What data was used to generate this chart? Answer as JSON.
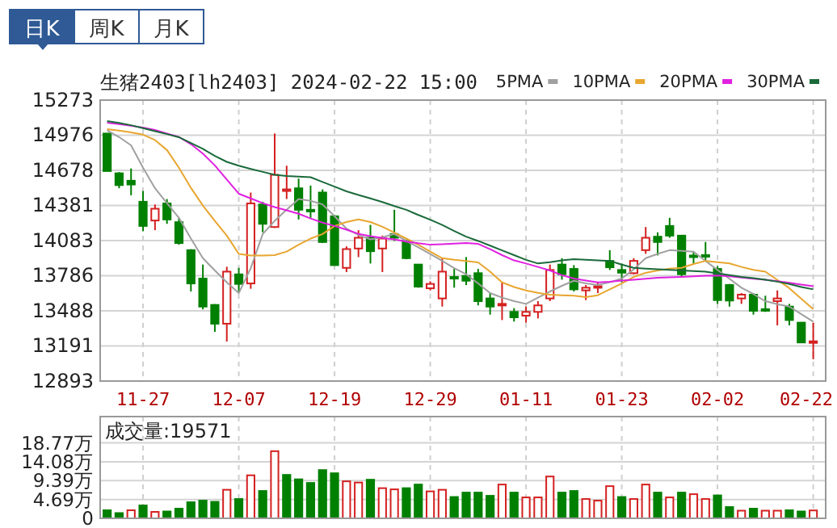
{
  "chart_data": [
    {
      "type": "candlestick",
      "title": "生猪2403[lh2403] 2024-02-22 15:00",
      "annotations": [
        "日K",
        "周K",
        "月K"
      ],
      "categories": [
        null,
        null,
        null,
        "11-27",
        null,
        null,
        null,
        null,
        null,
        null,
        null,
        "12-07",
        null,
        null,
        null,
        null,
        null,
        null,
        null,
        "12-19",
        null,
        null,
        null,
        null,
        null,
        null,
        null,
        "12-29",
        null,
        null,
        null,
        null,
        null,
        null,
        null,
        "01-11",
        null,
        null,
        null,
        null,
        null,
        null,
        null,
        "01-23",
        null,
        null,
        null,
        null,
        null,
        null,
        null,
        "02-02",
        null,
        null,
        null,
        null,
        null,
        null,
        null,
        "02-22"
      ],
      "ohlc": [
        [
          14990,
          14990,
          14672,
          14672
        ],
        [
          14653,
          14663,
          14526,
          14553
        ],
        [
          14590,
          14694,
          14467,
          14558
        ],
        [
          14412,
          14503,
          14162,
          14207
        ],
        [
          14253,
          14389,
          14171,
          14353
        ],
        [
          14398,
          14435,
          14225,
          14262
        ],
        [
          14239,
          14276,
          14048,
          14062
        ],
        [
          14002,
          14010,
          13652,
          13720
        ],
        [
          13761,
          13880,
          13500,
          13524
        ],
        [
          13538,
          13545,
          13310,
          13379
        ],
        [
          13379,
          13861,
          13228,
          13820
        ],
        [
          13797,
          13852,
          13652,
          13716
        ],
        [
          13720,
          14490,
          13675,
          14398
        ],
        [
          14389,
          14412,
          14153,
          14225
        ],
        [
          14198,
          14990,
          14190,
          14640
        ],
        [
          14503,
          14717,
          14435,
          14517
        ],
        [
          14526,
          14608,
          14262,
          14344
        ],
        [
          14344,
          14549,
          14276,
          14330
        ],
        [
          14490,
          14517,
          14062,
          14071
        ],
        [
          14289,
          14300,
          13870,
          13875
        ],
        [
          13852,
          14034,
          13816,
          14011
        ],
        [
          14016,
          14171,
          13943,
          14107
        ],
        [
          14107,
          14216,
          13889,
          13993
        ],
        [
          14016,
          14125,
          13816,
          14100
        ],
        [
          14139,
          14344,
          14080,
          14107
        ],
        [
          14080,
          14093,
          13925,
          13934
        ],
        [
          13880,
          13885,
          13684,
          13693
        ],
        [
          13679,
          13738,
          13661,
          13716
        ],
        [
          13593,
          13934,
          13524,
          13820
        ],
        [
          13775,
          13843,
          13684,
          13761
        ],
        [
          13784,
          13943,
          13706,
          13743
        ],
        [
          13807,
          13843,
          13534,
          13570
        ],
        [
          13593,
          13638,
          13456,
          13524
        ],
        [
          13534,
          13729,
          13410,
          13547
        ],
        [
          13479,
          13511,
          13397,
          13433
        ],
        [
          13447,
          13524,
          13388,
          13479
        ],
        [
          13479,
          13570,
          13424,
          13534
        ],
        [
          13593,
          13880,
          13570,
          13834
        ],
        [
          13880,
          13934,
          13752,
          13798
        ],
        [
          13843,
          13875,
          13652,
          13670
        ],
        [
          13661,
          13707,
          13579,
          13684
        ],
        [
          13684,
          13729,
          13638,
          13697
        ],
        [
          13911,
          14002,
          13834,
          13857
        ],
        [
          13834,
          13889,
          13729,
          13811
        ],
        [
          13807,
          13934,
          13798,
          13911
        ],
        [
          14002,
          14198,
          13971,
          14107
        ],
        [
          14116,
          14153,
          13957,
          14071
        ],
        [
          14207,
          14276,
          14107,
          14125
        ],
        [
          14125,
          14125,
          13775,
          13798
        ],
        [
          13957,
          13989,
          13889,
          13943
        ],
        [
          13960,
          14071,
          13911,
          13950
        ],
        [
          13843,
          13866,
          13547,
          13579
        ],
        [
          13707,
          13716,
          13524,
          13575
        ],
        [
          13593,
          13638,
          13547,
          13625
        ],
        [
          13625,
          13638,
          13456,
          13488
        ],
        [
          13502,
          13616,
          13479,
          13493
        ],
        [
          13570,
          13661,
          13365,
          13593
        ],
        [
          13524,
          13547,
          13365,
          13410
        ],
        [
          13388,
          13388,
          13215,
          13220
        ],
        [
          13218,
          13388,
          13078,
          13230
        ]
      ],
      "colors": [
        "#008000",
        "#008000",
        "#008000",
        "#008000",
        "#d42020",
        "#008000",
        "#008000",
        "#008000",
        "#008000",
        "#008000",
        "#d42020",
        "#008000",
        "#d42020",
        "#008000",
        "#d42020",
        "#d42020",
        "#008000",
        "#008000",
        "#008000",
        "#008000",
        "#d42020",
        "#d42020",
        "#008000",
        "#d42020",
        "#008000",
        "#008000",
        "#008000",
        "#d42020",
        "#d42020",
        "#008000",
        "#008000",
        "#008000",
        "#008000",
        "#d42020",
        "#008000",
        "#d42020",
        "#d42020",
        "#d42020",
        "#008000",
        "#008000",
        "#d42020",
        "#d42020",
        "#008000",
        "#008000",
        "#d42020",
        "#d42020",
        "#008000",
        "#008000",
        "#008000",
        "#008000",
        "#008000",
        "#008000",
        "#008000",
        "#d42020",
        "#008000",
        "#008000",
        "#d42020",
        "#008000",
        "#008000",
        "#d42020"
      ],
      "series": [
        {
          "name": "5PMA",
          "type": "line",
          "color": "#a0a0a0",
          "values": [
            15018,
            14960,
            14890,
            14700,
            14526,
            14400,
            14276,
            14100,
            13934,
            13830,
            13729,
            13638,
            13850,
            14139,
            14250,
            14344,
            14435,
            14420,
            14390,
            14290,
            14184,
            14130,
            14093,
            14110,
            14139,
            14080,
            14025,
            13970,
            13911,
            13850,
            13798,
            13720,
            13638,
            13600,
            13570,
            13547,
            13600,
            13652,
            13700,
            13743,
            13720,
            13707,
            13730,
            13761,
            13840,
            13934,
            13970,
            14002,
            13995,
            13989,
            13910,
            13834,
            13760,
            13684,
            13630,
            13570,
            13545,
            13524,
            13460,
            13397
          ]
        },
        {
          "name": "10PMA",
          "type": "line",
          "color": "#e8a630",
          "values": [
            15027,
            15015,
            15000,
            14980,
            14935,
            14850,
            14700,
            14530,
            14380,
            14250,
            14125,
            13970,
            13957,
            13957,
            13960,
            13990,
            14048,
            14100,
            14139,
            14207,
            14240,
            14262,
            14240,
            14200,
            14150,
            14100,
            14048,
            13990,
            13934,
            13920,
            13910,
            13898,
            13820,
            13729,
            13690,
            13661,
            13640,
            13625,
            13620,
            13616,
            13605,
            13620,
            13670,
            13720,
            13775,
            13810,
            13830,
            13845,
            13852,
            13885,
            13911,
            13900,
            13890,
            13860,
            13835,
            13820,
            13750,
            13680,
            13590,
            13502
          ]
        },
        {
          "name": "20PMA",
          "type": "line",
          "color": "#e020e0",
          "values": [
            15081,
            15070,
            15055,
            15040,
            15020,
            14990,
            14960,
            14900,
            14820,
            14720,
            14600,
            14480,
            14440,
            14400,
            14367,
            14340,
            14310,
            14270,
            14235,
            14207,
            14175,
            14140,
            14120,
            14105,
            14093,
            14075,
            14060,
            14048,
            14052,
            14058,
            14062,
            14055,
            14010,
            13960,
            13915,
            13889,
            13860,
            13830,
            13790,
            13761,
            13745,
            13729,
            13735,
            13745,
            13752,
            13760,
            13768,
            13772,
            13775,
            13780,
            13785,
            13788,
            13780,
            13770,
            13760,
            13752,
            13740,
            13725,
            13710,
            13697
          ]
        },
        {
          "name": "30PMA",
          "type": "line",
          "color": "#1a6a3a",
          "values": [
            15095,
            15080,
            15060,
            15036,
            15010,
            14985,
            14959,
            14910,
            14860,
            14800,
            14750,
            14717,
            14690,
            14665,
            14640,
            14630,
            14625,
            14620,
            14580,
            14540,
            14500,
            14470,
            14440,
            14410,
            14375,
            14344,
            14300,
            14260,
            14216,
            14165,
            14116,
            14080,
            14040,
            14000,
            13960,
            13920,
            13889,
            13900,
            13915,
            13925,
            13920,
            13915,
            13911,
            13880,
            13852,
            13845,
            13840,
            13835,
            13830,
            13825,
            13820,
            13805,
            13790,
            13775,
            13765,
            13752,
            13735,
            13715,
            13690,
            13670
          ]
        }
      ],
      "ylim": [
        12893,
        15273
      ],
      "yticks": [
        12893,
        13191,
        13488,
        13786,
        14083,
        14381,
        14678,
        14976,
        15273
      ],
      "grid": true,
      "legend": "top right"
    },
    {
      "type": "bar",
      "title": "成交量:19571",
      "categories": [
        null,
        null,
        null,
        null,
        null,
        null,
        null,
        null,
        null,
        null,
        null,
        null,
        null,
        null,
        null,
        null,
        null,
        null,
        null,
        null,
        null,
        null,
        null,
        null,
        null,
        null,
        null,
        null,
        null,
        null,
        null,
        null,
        null,
        null,
        null,
        null,
        null,
        null,
        null,
        null,
        null,
        null,
        null,
        null,
        null,
        null,
        null,
        null,
        null,
        null,
        null,
        null,
        null,
        null,
        null,
        null,
        null,
        null,
        null,
        null
      ],
      "values": [
        2.0,
        1.3,
        2.0,
        3.2,
        1.6,
        1.7,
        2.4,
        4.0,
        4.4,
        4.1,
        7.1,
        4.8,
        10.7,
        6.8,
        16.7,
        10.8,
        9.7,
        8.8,
        12.0,
        11.2,
        9.2,
        8.9,
        9.6,
        7.5,
        7.2,
        7.5,
        8.4,
        6.7,
        7.1,
        5.3,
        6.4,
        6.4,
        5.6,
        8.4,
        6.4,
        5.2,
        5.2,
        10.4,
        6.4,
        6.8,
        4.8,
        4.4,
        8.0,
        5.3,
        4.8,
        8.4,
        6.4,
        5.2,
        6.4,
        6.0,
        4.8,
        5.7,
        2.8,
        1.9,
        2.4,
        1.9,
        1.9,
        2.0,
        1.7,
        1.96
      ],
      "colors": [
        "#008000",
        "#008000",
        "#d42020",
        "#008000",
        "#d42020",
        "#008000",
        "#008000",
        "#008000",
        "#008000",
        "#008000",
        "#d42020",
        "#008000",
        "#d42020",
        "#008000",
        "#d42020",
        "#008000",
        "#008000",
        "#008000",
        "#008000",
        "#008000",
        "#d42020",
        "#d42020",
        "#008000",
        "#d42020",
        "#d42020",
        "#008000",
        "#008000",
        "#d42020",
        "#d42020",
        "#008000",
        "#008000",
        "#008000",
        "#008000",
        "#d42020",
        "#008000",
        "#d42020",
        "#d42020",
        "#d42020",
        "#008000",
        "#008000",
        "#d42020",
        "#d42020",
        "#d42020",
        "#008000",
        "#d42020",
        "#d42020",
        "#008000",
        "#d42020",
        "#008000",
        "#d42020",
        "#d42020",
        "#008000",
        "#008000",
        "#d42020",
        "#008000",
        "#d42020",
        "#d42020",
        "#008000",
        "#008000",
        "#d42020"
      ],
      "ylim": [
        0,
        25.3
      ],
      "yticks": [
        0,
        {
          "value": 4.69,
          "label": "4.69万"
        },
        {
          "value": 9.39,
          "label": "9.39万"
        },
        {
          "value": 14.08,
          "label": "14.08万"
        },
        {
          "value": 18.77,
          "label": "18.77万"
        }
      ],
      "grid": true,
      "tick_labels": "y"
    }
  ]
}
